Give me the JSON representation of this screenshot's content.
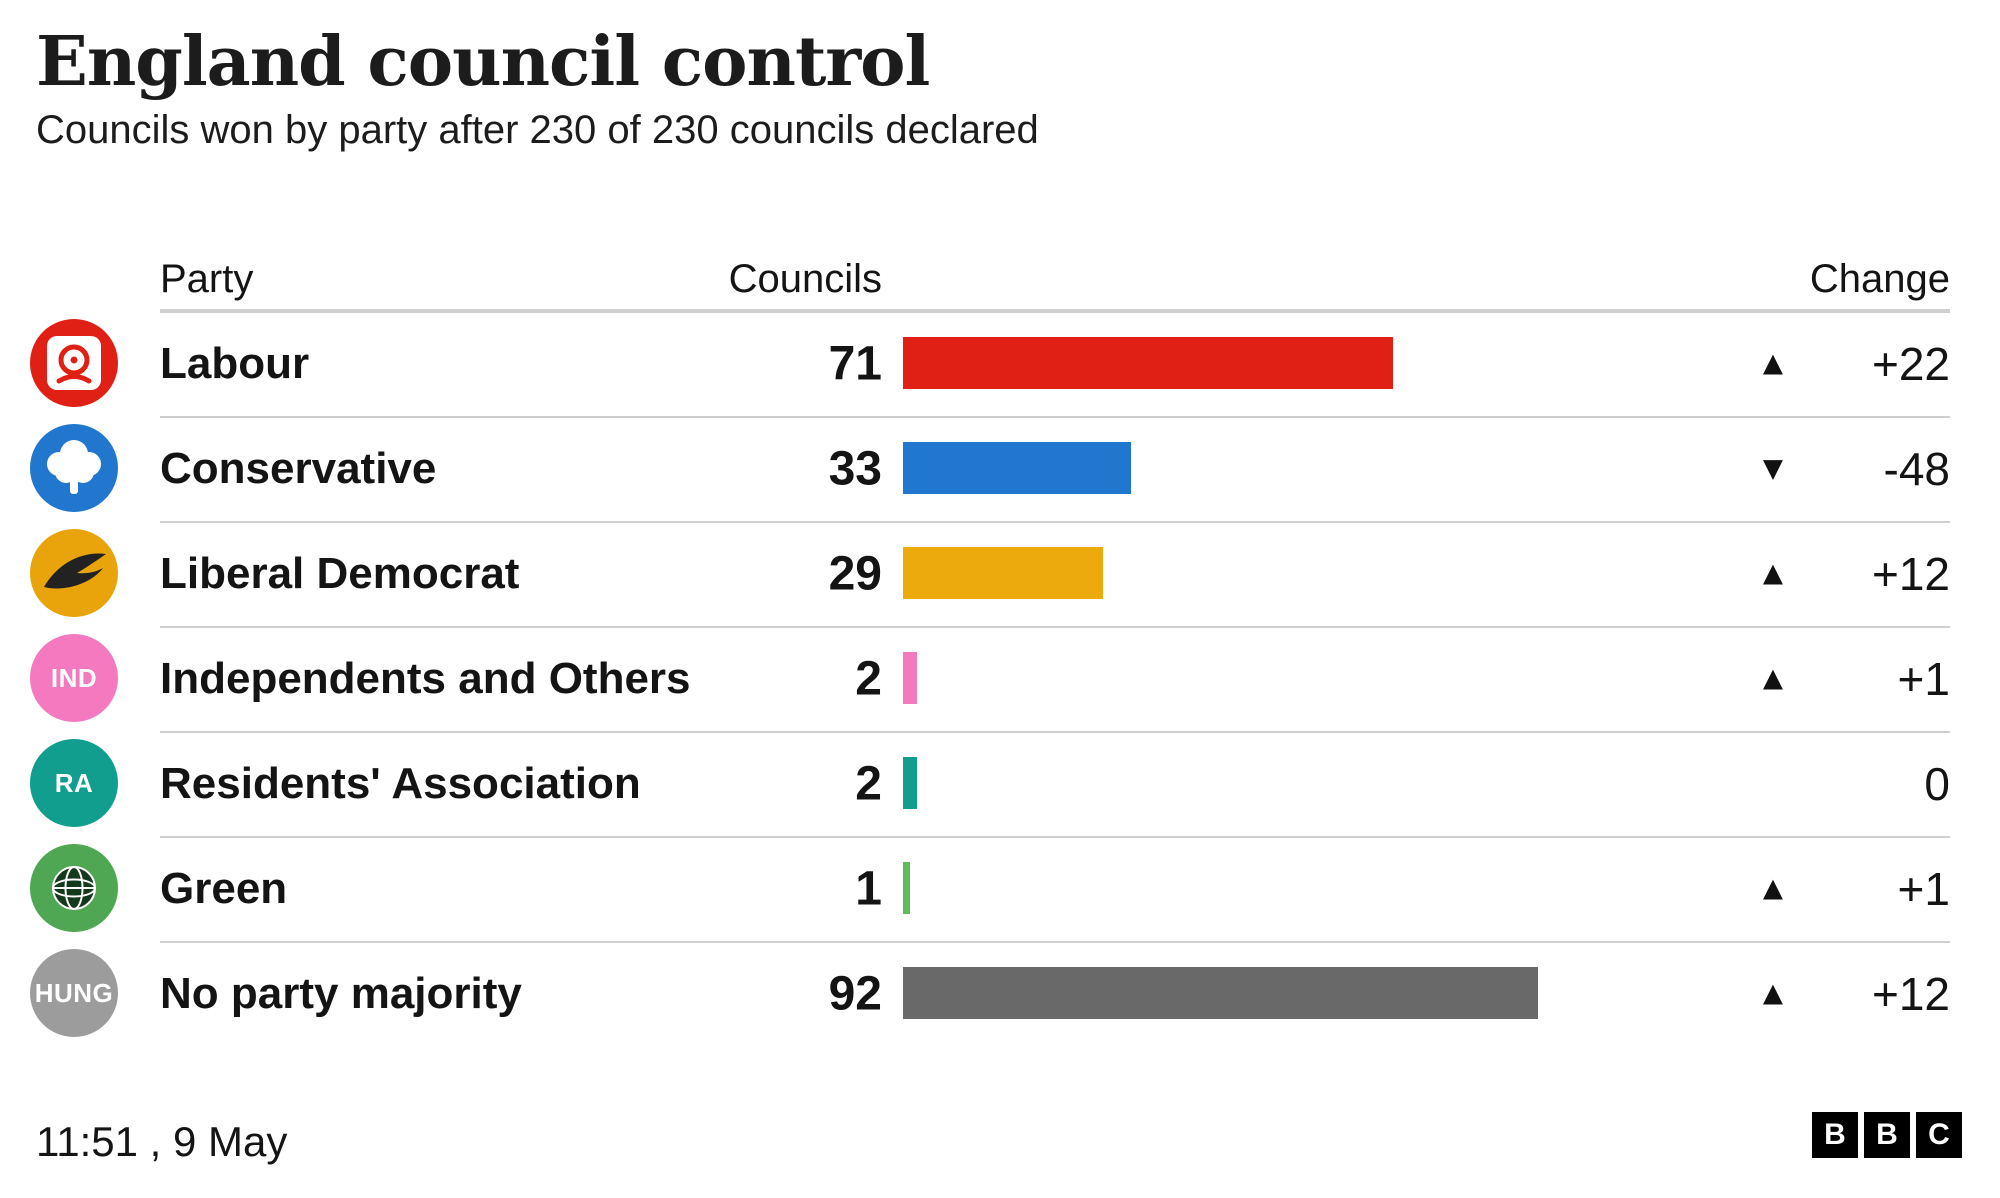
{
  "header": {
    "title": "England council control",
    "subtitle": "Councils won by party after 230 of 230 councils declared"
  },
  "table_header": {
    "party": "Party",
    "councils": "Councils",
    "change": "Change"
  },
  "rows": [
    {
      "party": "Labour",
      "councils": "71",
      "value": 71,
      "color": "#e02015",
      "badge_color": "#e02015",
      "badge": "",
      "arrow": "▲",
      "change": "+22"
    },
    {
      "party": "Conservative",
      "councils": "33",
      "value": 33,
      "color": "#2177cd",
      "badge_color": "#2177cd",
      "badge": "",
      "arrow": "▼",
      "change": "-48"
    },
    {
      "party": "Liberal Democrat",
      "councils": "29",
      "value": 29,
      "color": "#edaa0d",
      "badge_color": "#e8a40a",
      "badge": "",
      "arrow": "▲",
      "change": "+12"
    },
    {
      "party": "Independents and Others",
      "councils": "2",
      "value": 2,
      "color": "#f479be",
      "badge_color": "#f479be",
      "badge": "IND",
      "arrow": "▲",
      "change": "+1"
    },
    {
      "party": "Residents' Association",
      "councils": "2",
      "value": 2,
      "color": "#129e8e",
      "badge_color": "#129e8e",
      "badge": "RA",
      "arrow": "",
      "change": "0"
    },
    {
      "party": "Green",
      "councils": "1",
      "value": 1,
      "color": "#5ebc5d",
      "badge_color": "#4fa653",
      "badge": "",
      "arrow": "▲",
      "change": "+1"
    },
    {
      "party": "No party majority",
      "councils": "92",
      "value": 92,
      "color": "#696969",
      "badge_color": "#9c9c9c",
      "badge": "HUNG",
      "arrow": "▲",
      "change": "+12"
    }
  ],
  "chart_data": {
    "type": "bar",
    "orientation": "horizontal",
    "title": "England council control",
    "subtitle": "Councils won by party after 230 of 230 councils declared",
    "categories": [
      "Labour",
      "Conservative",
      "Liberal Democrat",
      "Independents and Others",
      "Residents' Association",
      "Green",
      "No party majority"
    ],
    "values": [
      71,
      33,
      29,
      2,
      2,
      1,
      92
    ],
    "changes": [
      22,
      -48,
      12,
      1,
      0,
      1,
      12
    ],
    "colors": [
      "#e02015",
      "#2177cd",
      "#edaa0d",
      "#f479be",
      "#129e8e",
      "#5ebc5d",
      "#696969"
    ],
    "xlim": [
      0,
      100
    ],
    "grid": false,
    "legend": "none"
  },
  "footer": {
    "timestamp": "11:51 ,  9 May",
    "logo_letters": [
      "B",
      "B",
      "C"
    ]
  }
}
